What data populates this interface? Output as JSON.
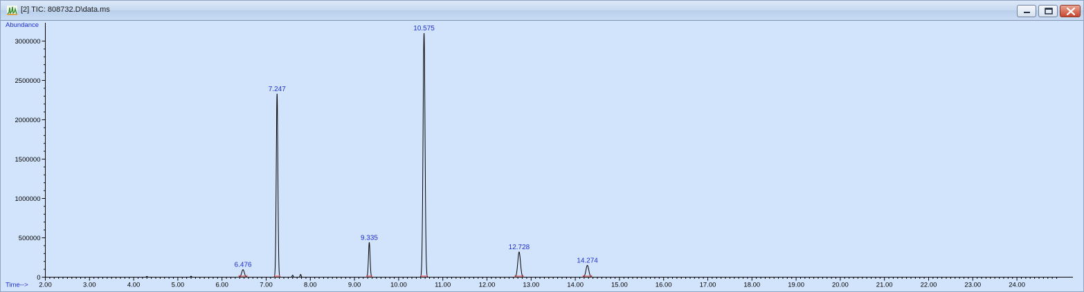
{
  "window": {
    "title": "[2] TIC: 808732.D\\data.ms",
    "buttons": [
      "minimize-icon",
      "maximize-icon",
      "close-icon"
    ]
  },
  "colors": {
    "plot_background": "#d2e4fb",
    "trace": "#000000",
    "peak_label": "#1e2fd0",
    "baseline_marker": "#e04040"
  },
  "chart_data": {
    "type": "line",
    "xlabel": "Time-->",
    "ylabel": "Abundance",
    "xlim": [
      1.95,
      25.0
    ],
    "ylim": [
      0,
      3100000
    ],
    "x_ticks": [
      "2.00",
      "3.00",
      "4.00",
      "5.00",
      "6.00",
      "7.00",
      "8.00",
      "9.00",
      "10.00",
      "11.00",
      "12.00",
      "13.00",
      "14.00",
      "15.00",
      "16.00",
      "17.00",
      "18.00",
      "19.00",
      "20.00",
      "21.00",
      "22.00",
      "23.00",
      "24.00"
    ],
    "y_ticks": [
      "0",
      "500000",
      "1000000",
      "1500000",
      "2000000",
      "2500000",
      "3000000"
    ],
    "grid": false,
    "peaks": [
      {
        "label": "6.476",
        "x": 6.476,
        "y": 95000,
        "width": 0.03
      },
      {
        "label": "7.247",
        "x": 7.247,
        "y": 2330000,
        "width": 0.018
      },
      {
        "label": "9.335",
        "x": 9.335,
        "y": 440000,
        "width": 0.018
      },
      {
        "label": "10.575",
        "x": 10.575,
        "y": 3100000,
        "width": 0.022
      },
      {
        "label": "12.728",
        "x": 12.728,
        "y": 320000,
        "width": 0.03
      },
      {
        "label": "14.274",
        "x": 14.274,
        "y": 150000,
        "width": 0.032
      }
    ],
    "minor_peaks": [
      {
        "x": 4.3,
        "y": 10000
      },
      {
        "x": 5.3,
        "y": 12000
      },
      {
        "x": 7.6,
        "y": 25000
      },
      {
        "x": 7.78,
        "y": 35000
      }
    ]
  }
}
